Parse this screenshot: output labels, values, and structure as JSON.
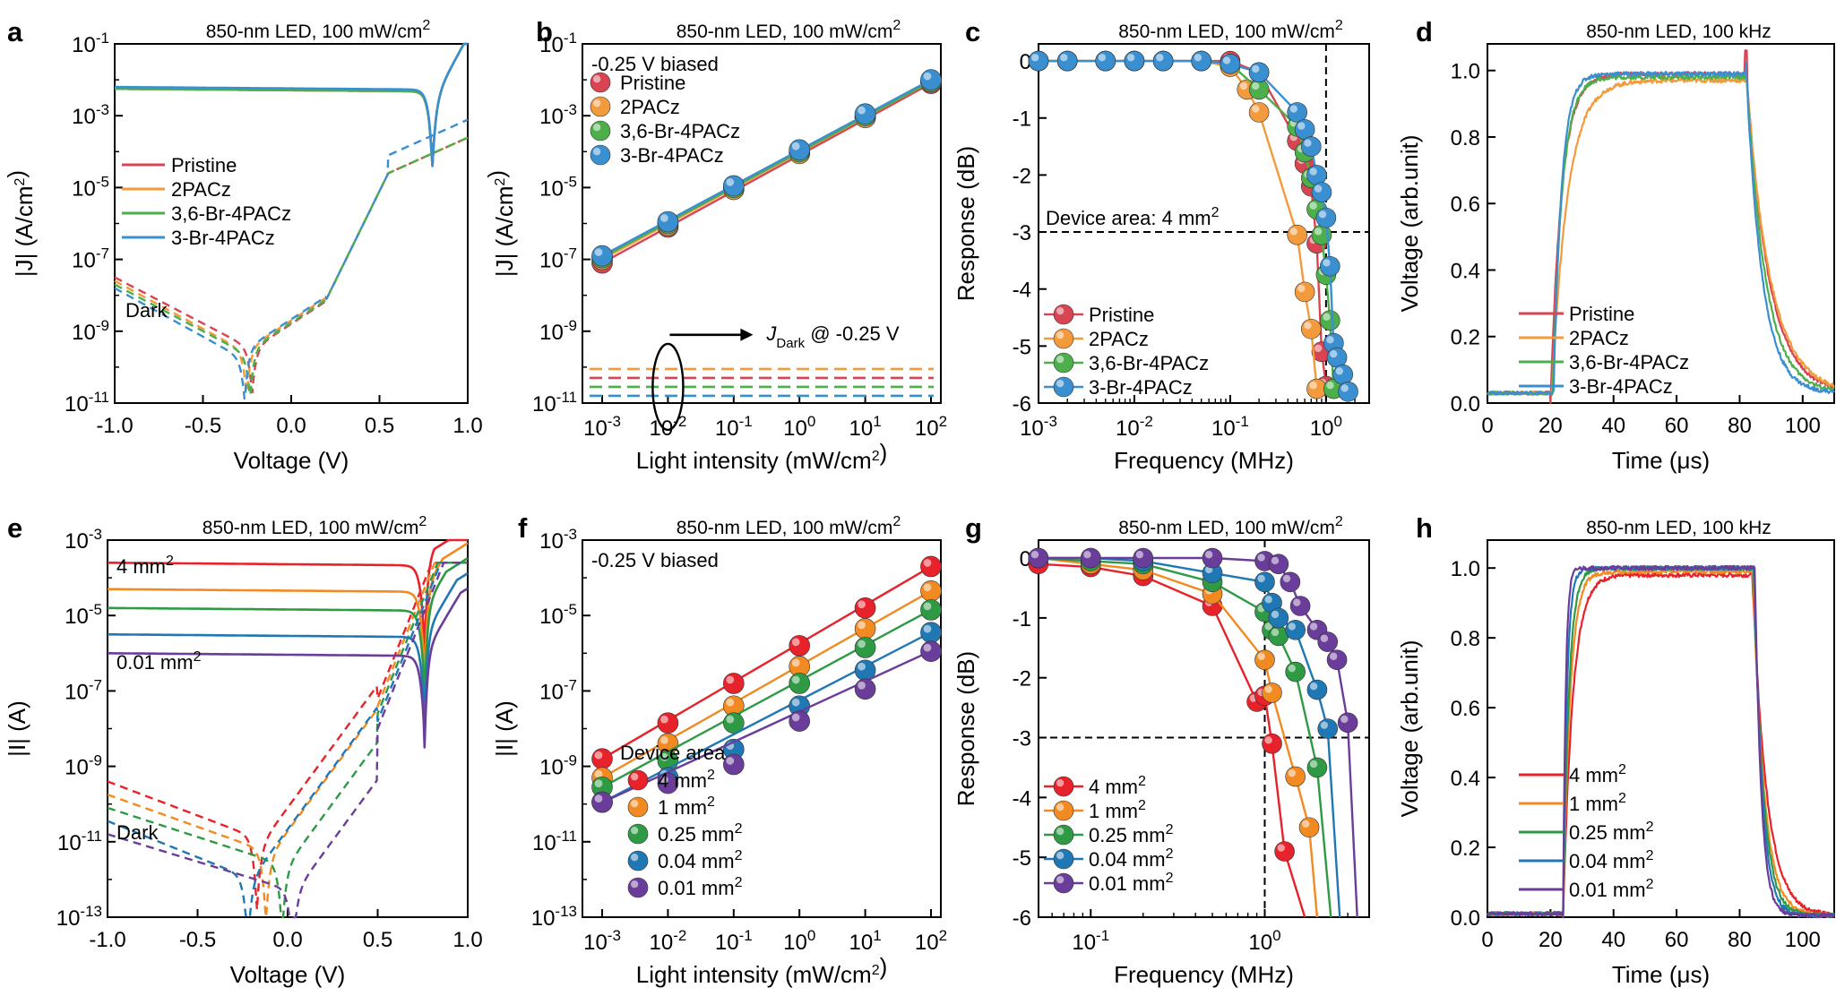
{
  "chart_data": [
    {
      "panel": "a",
      "type": "line",
      "title": "850-nm LED, 100 mW/cm²",
      "xlabel": "Voltage (V)",
      "ylabel": "|J| (A/cm²)",
      "xlim": [
        -1.0,
        1.0
      ],
      "ylim": [
        -11,
        -1
      ],
      "yscale": "log",
      "xticks": [
        "-1.0",
        "-0.5",
        "0.0",
        "0.5",
        "1.0"
      ],
      "yticks": [
        "10-11",
        "10-9",
        "10-7",
        "10-5",
        "10-3",
        "10-1"
      ],
      "legend": [
        "Pristine",
        "2PACz",
        "3,6-Br-4PACz",
        "3-Br-4PACz"
      ],
      "annotation": "Dark",
      "series": [
        {
          "name": "Pristine",
          "color": "#d94452",
          "light_logJ": -2.25,
          "dark_dip_V": -0.22
        },
        {
          "name": "2PACz",
          "color": "#f39a3c",
          "light_logJ": -2.25,
          "dark_dip_V": -0.25
        },
        {
          "name": "3,6-Br-4PACz",
          "color": "#4daf4a",
          "light_logJ": -2.25,
          "dark_dip_V": -0.23
        },
        {
          "name": "3-Br-4PACz",
          "color": "#3a8fd0",
          "light_logJ": -2.2,
          "dark_dip_V": -0.26
        }
      ]
    },
    {
      "panel": "b",
      "type": "scatter",
      "title": "850-nm LED, 100 mW/cm²",
      "xlabel": "Light intensity (mW/cm²)",
      "ylabel": "|J| (A/cm²)",
      "xscale": "log",
      "yscale": "log",
      "xlim": [
        -3.3,
        2.15
      ],
      "ylim": [
        -11,
        -1
      ],
      "xticks": [
        "10-3",
        "10-2",
        "10-1",
        "100",
        "101",
        "102"
      ],
      "yticks": [
        "10-11",
        "10-9",
        "10-7",
        "10-5",
        "10-3",
        "10-1"
      ],
      "bias_note": "-0.25 V biased",
      "dark_label": "J_Dark @ -0.25 V",
      "x": [
        0.001,
        0.01,
        0.1,
        1,
        10,
        100
      ],
      "series": [
        {
          "name": "Pristine",
          "color": "#d94452",
          "logJ": [
            -7.1,
            -6.1,
            -5.05,
            -4.05,
            -3.05,
            -2.1
          ],
          "dark_logJ": -10.3
        },
        {
          "name": "2PACz",
          "color": "#f39a3c",
          "logJ": [
            -7.0,
            -6.05,
            -5.05,
            -4.05,
            -3.05,
            -2.05
          ],
          "dark_logJ": -10.05
        },
        {
          "name": "3,6-Br-4PACz",
          "color": "#4daf4a",
          "logJ": [
            -6.95,
            -6.0,
            -5.0,
            -4.0,
            -3.0,
            -2.05
          ],
          "dark_logJ": -10.55
        },
        {
          "name": "3-Br-4PACz",
          "color": "#3a8fd0",
          "logJ": [
            -6.9,
            -5.95,
            -4.95,
            -3.95,
            -2.95,
            -2.0
          ],
          "dark_logJ": -10.8
        }
      ]
    },
    {
      "panel": "c",
      "type": "line",
      "title": "850-nm LED, 100 mW/cm²",
      "xlabel": "Frequency (MHz)",
      "ylabel": "Response (dB)",
      "xscale": "log",
      "xlim": [
        -3,
        0.45
      ],
      "ylim": [
        -6,
        0.3
      ],
      "xticks": [
        "10-3",
        "10-2",
        "10-1",
        "100"
      ],
      "yticks": [
        "-6",
        "-5",
        "-4",
        "-3",
        "-2",
        "-1",
        "0"
      ],
      "reference": {
        "y": -3,
        "x": 1
      },
      "annotation": "Device area: 4 mm²",
      "series": [
        {
          "name": "Pristine",
          "color": "#d94452",
          "freq_MHz": [
            0.001,
            0.002,
            0.005,
            0.01,
            0.02,
            0.05,
            0.1,
            0.2,
            0.5,
            0.6,
            0.7,
            0.8,
            0.9,
            1.0
          ],
          "dB": [
            0,
            0,
            0,
            0,
            0,
            0,
            0,
            -0.2,
            -1.4,
            -1.8,
            -2.2,
            -3.2,
            -5.1,
            -5.7
          ]
        },
        {
          "name": "2PACz",
          "color": "#f39a3c",
          "freq_MHz": [
            0.001,
            0.002,
            0.005,
            0.01,
            0.02,
            0.05,
            0.1,
            0.15,
            0.2,
            0.5,
            0.6,
            0.7,
            0.8
          ],
          "dB": [
            0,
            0,
            0,
            0,
            0,
            0,
            -0.1,
            -0.5,
            -0.9,
            -3.05,
            -4.05,
            -4.7,
            -5.75
          ]
        },
        {
          "name": "3,6-Br-4PACz",
          "color": "#4daf4a",
          "freq_MHz": [
            0.001,
            0.002,
            0.005,
            0.01,
            0.02,
            0.05,
            0.1,
            0.2,
            0.5,
            0.6,
            0.7,
            0.8,
            0.9,
            1.0,
            1.1,
            1.2
          ],
          "dB": [
            0,
            0,
            0,
            0,
            0,
            0,
            -0.05,
            -0.5,
            -1.15,
            -1.6,
            -2.05,
            -2.6,
            -3.05,
            -3.75,
            -4.55,
            -5.75
          ]
        },
        {
          "name": "3-Br-4PACz",
          "color": "#3a8fd0",
          "freq_MHz": [
            0.001,
            0.002,
            0.005,
            0.01,
            0.02,
            0.05,
            0.1,
            0.2,
            0.5,
            0.6,
            0.7,
            0.8,
            0.9,
            1.0,
            1.1,
            1.2,
            1.3,
            1.5,
            1.7
          ],
          "dB": [
            0,
            0,
            0,
            0,
            0,
            0,
            -0.05,
            -0.2,
            -0.9,
            -1.2,
            -1.5,
            -2.0,
            -2.3,
            -2.75,
            -3.6,
            -4.95,
            -5.2,
            -5.5,
            -5.8
          ]
        }
      ]
    },
    {
      "panel": "d",
      "type": "line",
      "title": "850-nm LED, 100 kHz",
      "xlabel": "Time (μs)",
      "ylabel": "Voltage (arb.unit)",
      "xlim": [
        0,
        110
      ],
      "ylim": [
        0,
        1.08
      ],
      "xticks": [
        "0",
        "20",
        "40",
        "60",
        "80",
        "100"
      ],
      "yticks": [
        "0.0",
        "0.2",
        "0.4",
        "0.6",
        "0.8",
        "1.0"
      ],
      "pulse": {
        "on_us": 20,
        "off_us": 82
      },
      "series": [
        {
          "name": "Pristine",
          "color": "#d94452",
          "rise_tau_us": 3.5,
          "fall_tau_us": 7.0,
          "plateau": 0.99
        },
        {
          "name": "2PACz",
          "color": "#f39a3c",
          "rise_tau_us": 5.0,
          "fall_tau_us": 7.5,
          "plateau": 0.97
        },
        {
          "name": "3,6-Br-4PACz",
          "color": "#4daf4a",
          "rise_tau_us": 3.0,
          "fall_tau_us": 6.0,
          "plateau": 0.98
        },
        {
          "name": "3-Br-4PACz",
          "color": "#3a8fd0",
          "rise_tau_us": 2.5,
          "fall_tau_us": 5.0,
          "plateau": 0.99
        }
      ]
    },
    {
      "panel": "e",
      "type": "line",
      "title": "850-nm LED, 100 mW/cm²",
      "xlabel": "Voltage (V)",
      "ylabel": "|I| (A)",
      "xlim": [
        -1.0,
        1.0
      ],
      "ylim": [
        -13,
        -3
      ],
      "yscale": "log",
      "xticks": [
        "-1.0",
        "-0.5",
        "0.0",
        "0.5",
        "1.0"
      ],
      "yticks": [
        "10-13",
        "10-11",
        "10-9",
        "10-7",
        "10-5",
        "10-3"
      ],
      "annotations": [
        "4 mm²",
        "0.01 mm²",
        "Dark"
      ],
      "series": [
        {
          "name": "4 mm²",
          "color": "#e8222a",
          "light_logI": -3.6,
          "dark_dip_V": -0.17
        },
        {
          "name": "1 mm²",
          "color": "#f28a22",
          "light_logI": -4.3,
          "dark_dip_V": -0.12
        },
        {
          "name": "0.25 mm²",
          "color": "#2e9a44",
          "light_logI": -4.8,
          "dark_dip_V": -0.03
        },
        {
          "name": "0.04 mm²",
          "color": "#1f78b4",
          "light_logI": -5.5,
          "dark_dip_V": -0.22
        },
        {
          "name": "0.01 mm²",
          "color": "#6a3d9a",
          "light_logI": -6.0,
          "dark_dip_V": 0.03
        }
      ]
    },
    {
      "panel": "f",
      "type": "scatter",
      "title": "850-nm LED, 100 mW/cm²",
      "xlabel": "Light intensity (mW/cm²)",
      "ylabel": "|I| (A)",
      "xscale": "log",
      "yscale": "log",
      "xlim": [
        -3.3,
        2.15
      ],
      "ylim": [
        -13,
        -3
      ],
      "xticks": [
        "10-3",
        "10-2",
        "10-1",
        "100",
        "101",
        "102"
      ],
      "yticks": [
        "10-13",
        "10-11",
        "10-9",
        "10-7",
        "10-5",
        "10-3"
      ],
      "bias_note": "-0.25 V biased",
      "legend_title": "Device area",
      "x": [
        0.001,
        0.01,
        0.1,
        1,
        10,
        100
      ],
      "series": [
        {
          "name": "4 mm²",
          "color": "#e8222a",
          "logI": [
            -8.8,
            -7.85,
            -6.8,
            -5.8,
            -4.8,
            -3.7
          ]
        },
        {
          "name": "1 mm²",
          "color": "#f28a22",
          "logI": [
            -9.3,
            -8.4,
            -7.4,
            -6.35,
            -5.35,
            -4.35
          ]
        },
        {
          "name": "0.25 mm²",
          "color": "#2e9a44",
          "logI": [
            -9.55,
            -8.85,
            -7.85,
            -6.8,
            -5.85,
            -4.85
          ]
        },
        {
          "name": "0.04 mm²",
          "color": "#1f78b4",
          "logI": [
            -9.95,
            -9.3,
            -8.55,
            -7.4,
            -6.45,
            -5.45
          ]
        },
        {
          "name": "0.01 mm²",
          "color": "#6a3d9a",
          "logI": [
            -9.95,
            -9.45,
            -8.95,
            -7.8,
            -6.95,
            -5.95
          ]
        }
      ]
    },
    {
      "panel": "g",
      "type": "line",
      "title": "850-nm LED, 100 mW/cm²",
      "xlabel": "Frequency (MHz)",
      "ylabel": "Response (dB)",
      "xscale": "log",
      "xlim": [
        -1.3,
        0.6
      ],
      "ylim": [
        -6,
        0.3
      ],
      "xticks": [
        "10-1",
        "100"
      ],
      "yticks": [
        "-6",
        "-5",
        "-4",
        "-3",
        "-2",
        "-1",
        "0"
      ],
      "reference": {
        "y": -3,
        "x": 1
      },
      "series": [
        {
          "name": "4 mm²",
          "color": "#e8222a",
          "freq_MHz": [
            0.05,
            0.1,
            0.2,
            0.5,
            0.9,
            1.0,
            1.1,
            1.3,
            1.7
          ],
          "dB": [
            -0.1,
            -0.15,
            -0.3,
            -0.8,
            -2.4,
            -2.3,
            -3.1,
            -4.9,
            -6
          ]
        },
        {
          "name": "1 mm²",
          "color": "#f28a22",
          "freq_MHz": [
            0.05,
            0.1,
            0.2,
            0.5,
            1.0,
            1.1,
            1.5,
            1.8,
            2.0
          ],
          "dB": [
            0,
            -0.1,
            -0.2,
            -0.6,
            -1.7,
            -2.25,
            -3.65,
            -4.5,
            -6
          ]
        },
        {
          "name": "0.25 mm²",
          "color": "#2e9a44",
          "freq_MHz": [
            0.05,
            0.1,
            0.2,
            0.5,
            1.0,
            1.1,
            1.2,
            1.5,
            2.0,
            2.4
          ],
          "dB": [
            0,
            -0.05,
            -0.1,
            -0.4,
            -0.9,
            -1.2,
            -1.3,
            -1.9,
            -3.5,
            -6
          ]
        },
        {
          "name": "0.04 mm²",
          "color": "#1f78b4",
          "freq_MHz": [
            0.05,
            0.1,
            0.2,
            0.5,
            1.0,
            1.1,
            1.2,
            1.5,
            2.0,
            2.3,
            2.7
          ],
          "dB": [
            0,
            0,
            -0.05,
            -0.25,
            -0.4,
            -0.75,
            -1.0,
            -1.2,
            -2.2,
            -2.85,
            -6
          ]
        },
        {
          "name": "0.01 mm²",
          "color": "#6a3d9a",
          "freq_MHz": [
            0.05,
            0.1,
            0.2,
            0.5,
            1.0,
            1.2,
            1.4,
            1.6,
            2.0,
            2.3,
            2.6,
            3.0,
            3.4
          ],
          "dB": [
            0,
            0,
            0,
            0,
            -0.05,
            -0.1,
            -0.4,
            -0.8,
            -1.2,
            -1.4,
            -1.7,
            -2.75,
            -6
          ]
        }
      ]
    },
    {
      "panel": "h",
      "type": "line",
      "title": "850-nm LED, 100 kHz",
      "xlabel": "Time (μs)",
      "ylabel": "Voltage (arb.unit)",
      "xlim": [
        0,
        110
      ],
      "ylim": [
        0,
        1.08
      ],
      "xticks": [
        "0",
        "20",
        "40",
        "60",
        "80",
        "100"
      ],
      "yticks": [
        "0.0",
        "0.2",
        "0.4",
        "0.6",
        "0.8",
        "1.0"
      ],
      "pulse": {
        "on_us": 24,
        "off_us": 84
      },
      "series": [
        {
          "name": "4 mm²",
          "color": "#e8222a",
          "rise_tau_us": 3.0,
          "fall_tau_us": 4.5,
          "plateau": 0.98
        },
        {
          "name": "1 mm²",
          "color": "#f28a22",
          "rise_tau_us": 2.2,
          "fall_tau_us": 3.5,
          "plateau": 0.99
        },
        {
          "name": "0.25 mm²",
          "color": "#2e9a44",
          "rise_tau_us": 1.8,
          "fall_tau_us": 3.0,
          "plateau": 1.0
        },
        {
          "name": "0.04 mm²",
          "color": "#1f78b4",
          "rise_tau_us": 1.2,
          "fall_tau_us": 2.5,
          "plateau": 1.0
        },
        {
          "name": "0.01 mm²",
          "color": "#6a3d9a",
          "rise_tau_us": 0.8,
          "fall_tau_us": 2.0,
          "plateau": 1.0
        }
      ]
    }
  ]
}
